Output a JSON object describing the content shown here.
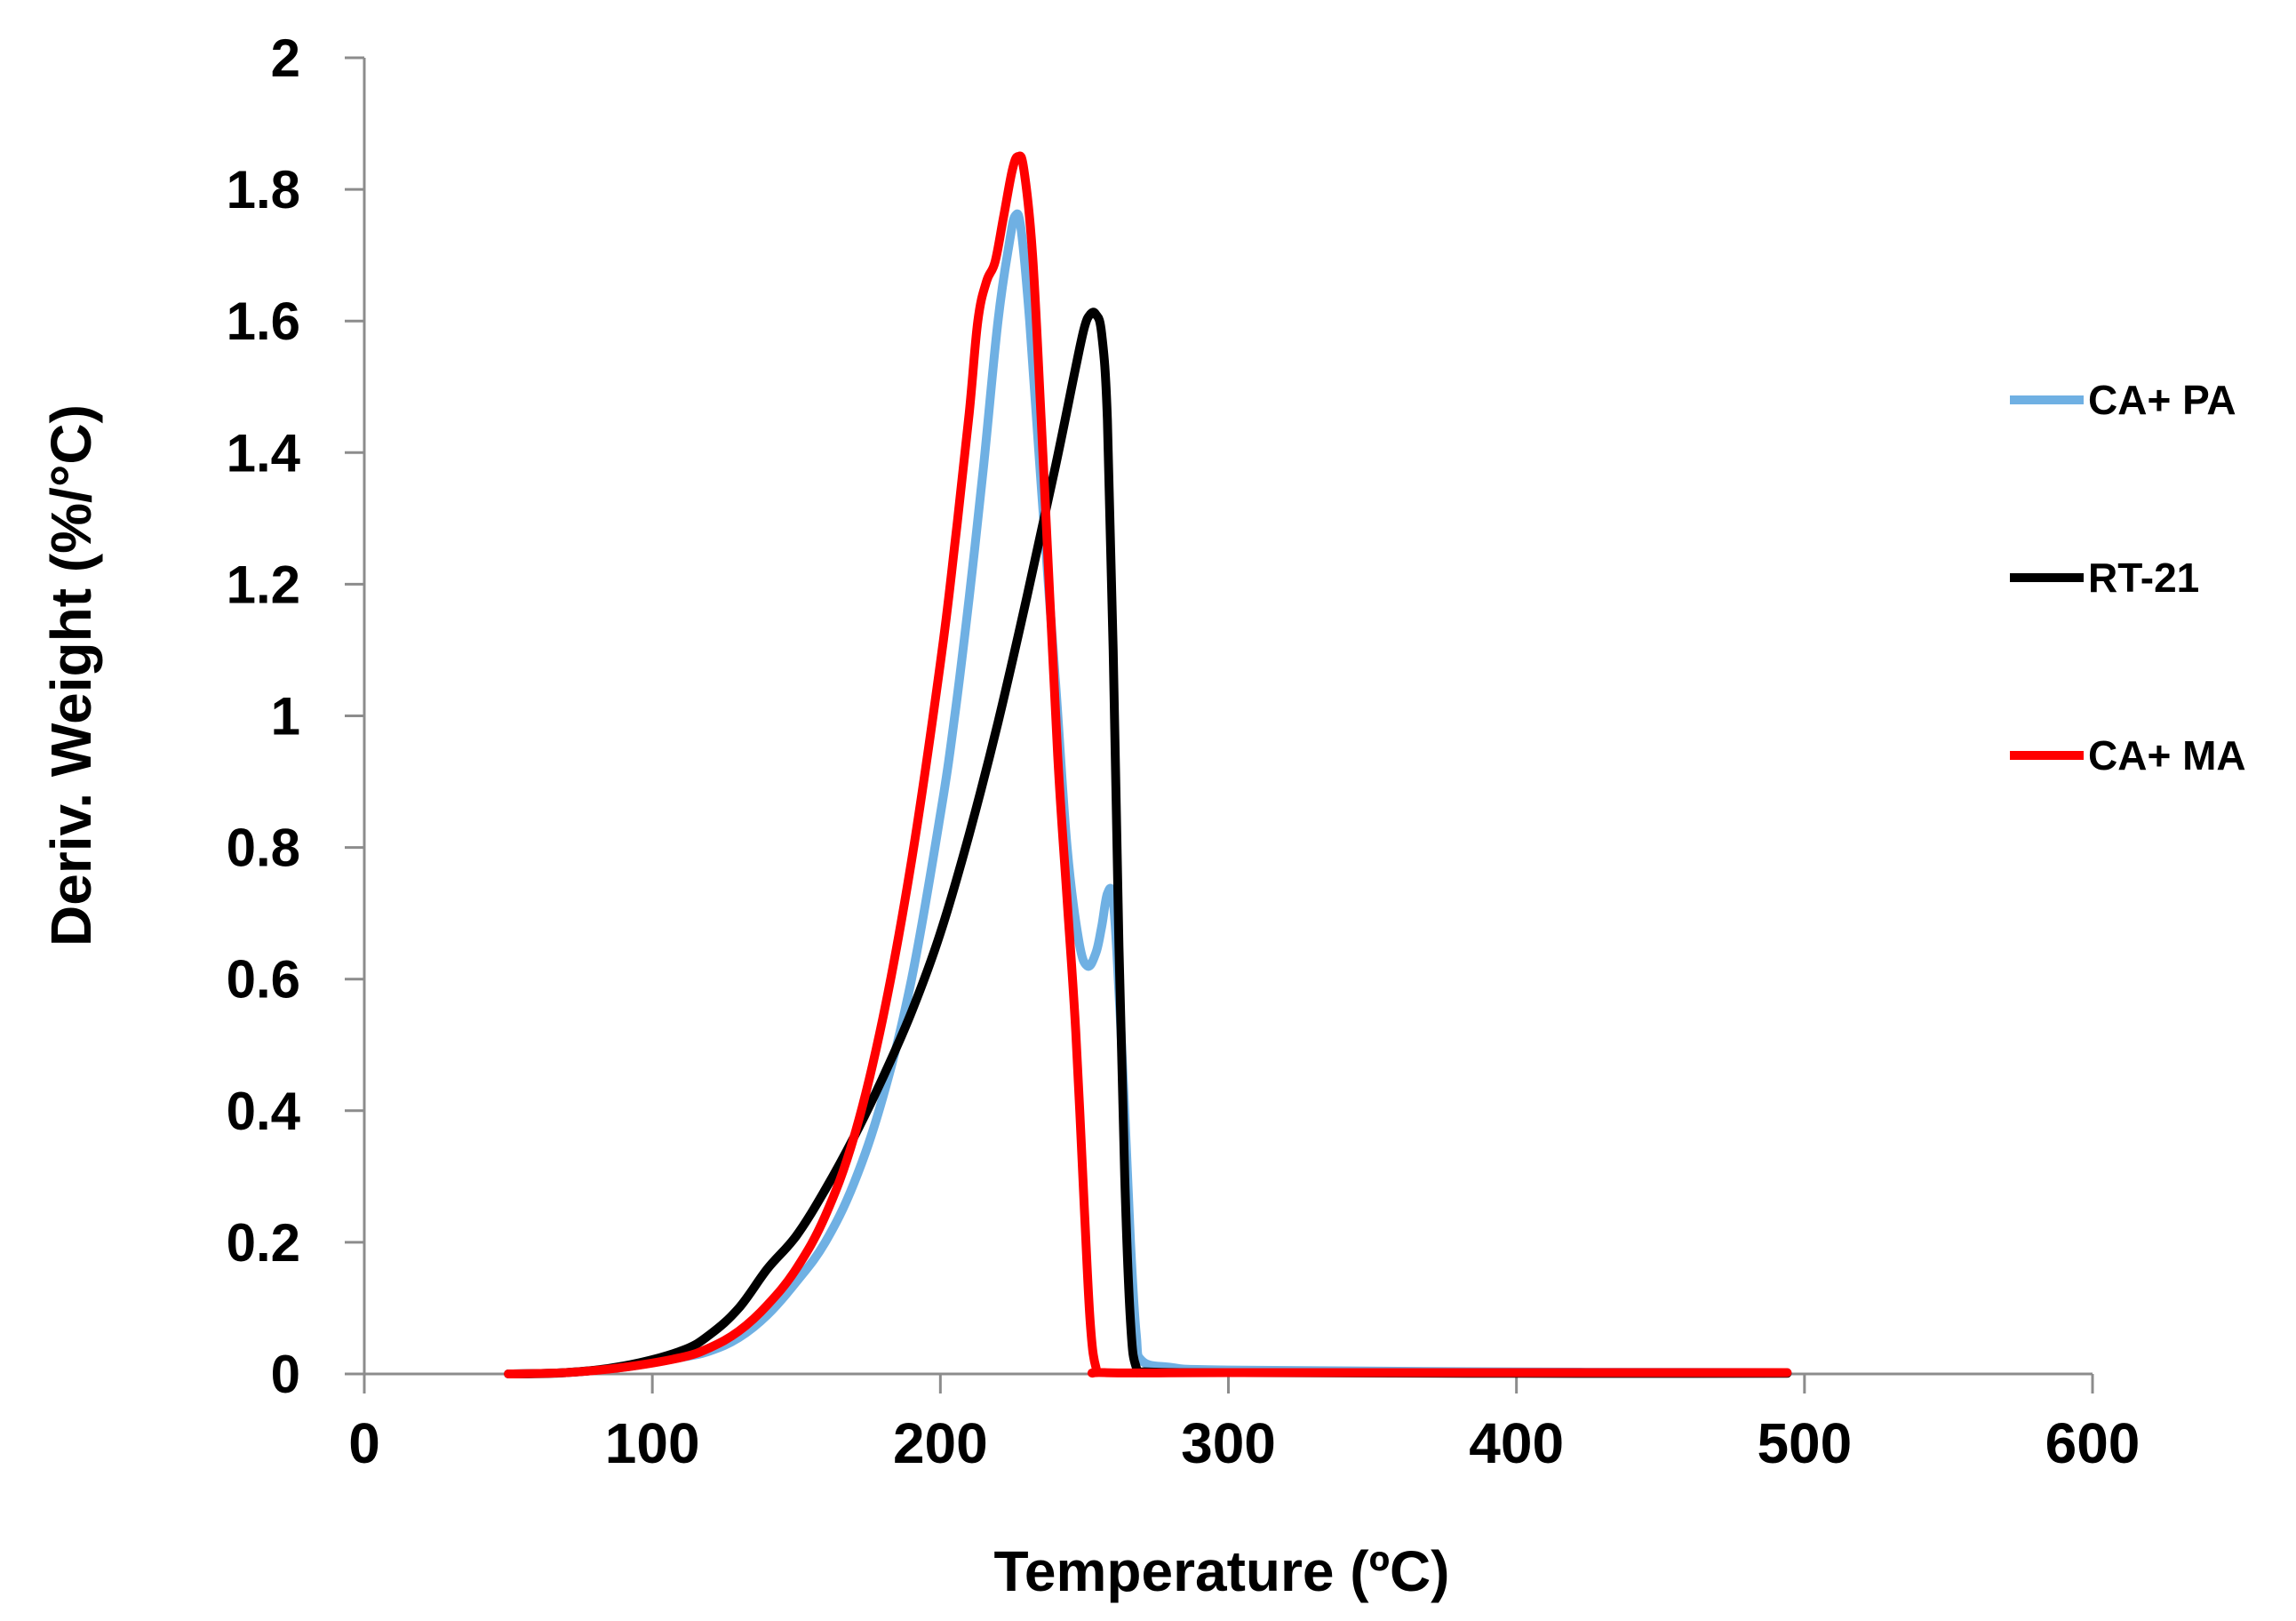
{
  "chart_data": {
    "type": "line",
    "title": "",
    "xlabel": "Temperature (ºC)",
    "ylabel": "Deriv. Weight (%/°C)",
    "xlim": [
      0,
      600
    ],
    "ylim": [
      0,
      2
    ],
    "x_ticks": [
      0,
      100,
      200,
      300,
      400,
      500,
      600
    ],
    "y_ticks": [
      0,
      0.2,
      0.4,
      0.6,
      0.8,
      1,
      1.2,
      1.4,
      1.6,
      1.8,
      2
    ],
    "x_tick_labels": [
      "0",
      "100",
      "200",
      "300",
      "400",
      "500",
      "600"
    ],
    "y_tick_labels": [
      "0",
      "0.2",
      "0.4",
      "0.6",
      "0.8",
      "1",
      "1.2",
      "1.4",
      "1.6",
      "1.8",
      "2"
    ],
    "grid": false,
    "legend_position": "right",
    "series": [
      {
        "name": "CA+ PA",
        "color": "#6fb0e3",
        "points": [
          [
            50,
            0
          ],
          [
            70,
            0.002
          ],
          [
            90,
            0.01
          ],
          [
            110,
            0.025
          ],
          [
            120,
            0.035
          ],
          [
            130,
            0.055
          ],
          [
            140,
            0.09
          ],
          [
            150,
            0.14
          ],
          [
            160,
            0.2
          ],
          [
            170,
            0.29
          ],
          [
            180,
            0.42
          ],
          [
            190,
            0.6
          ],
          [
            200,
            0.85
          ],
          [
            205,
            1.0
          ],
          [
            210,
            1.18
          ],
          [
            215,
            1.38
          ],
          [
            220,
            1.6
          ],
          [
            224,
            1.72
          ],
          [
            226,
            1.76
          ],
          [
            228,
            1.74
          ],
          [
            231,
            1.6
          ],
          [
            235,
            1.35
          ],
          [
            240,
            1.05
          ],
          [
            244,
            0.8
          ],
          [
            248,
            0.66
          ],
          [
            251,
            0.62
          ],
          [
            254,
            0.64
          ],
          [
            256,
            0.68
          ],
          [
            258,
            0.73
          ],
          [
            260,
            0.72
          ],
          [
            262,
            0.58
          ],
          [
            264,
            0.4
          ],
          [
            266,
            0.2
          ],
          [
            268,
            0.06
          ],
          [
            270,
            0.02
          ],
          [
            280,
            0.01
          ],
          [
            300,
            0.006
          ],
          [
            400,
            0.003
          ],
          [
            494,
            0.002
          ]
        ]
      },
      {
        "name": "RT-21",
        "color": "#000000",
        "points": [
          [
            50,
            0
          ],
          [
            70,
            0.002
          ],
          [
            90,
            0.012
          ],
          [
            110,
            0.035
          ],
          [
            120,
            0.06
          ],
          [
            130,
            0.1
          ],
          [
            140,
            0.16
          ],
          [
            150,
            0.21
          ],
          [
            160,
            0.28
          ],
          [
            170,
            0.36
          ],
          [
            180,
            0.45
          ],
          [
            190,
            0.55
          ],
          [
            200,
            0.67
          ],
          [
            210,
            0.82
          ],
          [
            220,
            0.99
          ],
          [
            230,
            1.18
          ],
          [
            240,
            1.38
          ],
          [
            247,
            1.53
          ],
          [
            250,
            1.59
          ],
          [
            252,
            1.61
          ],
          [
            254,
            1.61
          ],
          [
            256,
            1.58
          ],
          [
            258,
            1.45
          ],
          [
            260,
            1.1
          ],
          [
            262,
            0.65
          ],
          [
            264,
            0.3
          ],
          [
            266,
            0.08
          ],
          [
            268,
            0.01
          ],
          [
            272,
            0.003
          ],
          [
            300,
            0.002
          ],
          [
            400,
            0.001
          ],
          [
            494,
            0.001
          ]
        ]
      },
      {
        "name": "CA+ MA",
        "color": "#ff0000",
        "points": [
          [
            50,
            0
          ],
          [
            70,
            0.002
          ],
          [
            90,
            0.01
          ],
          [
            110,
            0.025
          ],
          [
            120,
            0.04
          ],
          [
            130,
            0.065
          ],
          [
            140,
            0.105
          ],
          [
            150,
            0.16
          ],
          [
            160,
            0.24
          ],
          [
            170,
            0.36
          ],
          [
            180,
            0.54
          ],
          [
            190,
            0.78
          ],
          [
            200,
            1.08
          ],
          [
            205,
            1.26
          ],
          [
            210,
            1.46
          ],
          [
            213,
            1.6
          ],
          [
            216,
            1.66
          ],
          [
            219,
            1.69
          ],
          [
            222,
            1.76
          ],
          [
            225,
            1.83
          ],
          [
            227,
            1.85
          ],
          [
            229,
            1.83
          ],
          [
            232,
            1.7
          ],
          [
            235,
            1.45
          ],
          [
            238,
            1.18
          ],
          [
            241,
            0.92
          ],
          [
            244,
            0.72
          ],
          [
            247,
            0.52
          ],
          [
            250,
            0.25
          ],
          [
            252,
            0.08
          ],
          [
            254,
            0.01
          ],
          [
            257,
            0.002
          ],
          [
            300,
            0.002
          ],
          [
            400,
            0.002
          ],
          [
            494,
            0.002
          ]
        ]
      }
    ]
  }
}
